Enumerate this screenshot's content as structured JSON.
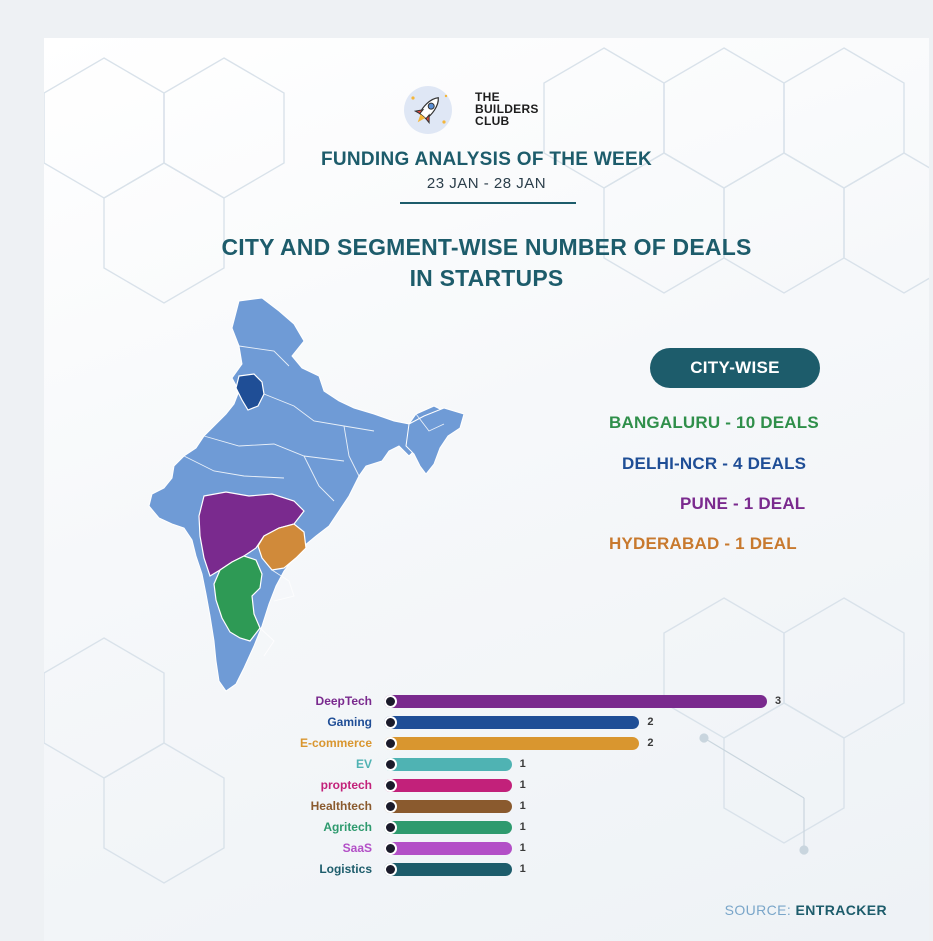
{
  "brand": {
    "line1": "THE",
    "line2": "BUILDERS",
    "line3": "CLUB"
  },
  "header": {
    "title": "FUNDING ANALYSIS OF THE WEEK",
    "date_range": "23 JAN - 28 JAN"
  },
  "headline": {
    "line1": "CITY AND SEGMENT-WISE NUMBER OF DEALS",
    "line2": "IN STARTUPS"
  },
  "city_panel": {
    "title": "CITY-WISE",
    "items": [
      {
        "text": "BANGALURU - 10 DEALS",
        "color": "#2f8f4a"
      },
      {
        "text": "DELHI-NCR - 4 DEALS",
        "color": "#1f4e96"
      },
      {
        "text": "PUNE - 1 DEAL",
        "color": "#7a2a8e"
      },
      {
        "text": "HYDERABAD - 1 DEAL",
        "color": "#c8792e"
      }
    ]
  },
  "map": {
    "base_color": "#6f9bd6",
    "highlights": {
      "delhi": "#1f4e96",
      "maharashtra": "#7a2a8e",
      "telangana": "#d08a3a",
      "karnataka": "#2e9a55"
    }
  },
  "chart_data": {
    "type": "bar",
    "orientation": "horizontal",
    "categories": [
      "DeepTech",
      "Gaming",
      "E-commerce",
      "EV",
      "proptech",
      "Healthtech",
      "Agritech",
      "SaaS",
      "Logistics"
    ],
    "values": [
      3,
      2,
      2,
      1,
      1,
      1,
      1,
      1,
      1
    ],
    "colors": [
      "#7a2a8e",
      "#1f4e96",
      "#d9962f",
      "#4fb3b3",
      "#c2217a",
      "#8a5a2e",
      "#2e9a6e",
      "#b34fc7",
      "#1d5c6b"
    ],
    "xlim": [
      0,
      3
    ]
  },
  "footer": {
    "source_label": "SOURCE: ",
    "source_value": "ENTRACKER"
  }
}
